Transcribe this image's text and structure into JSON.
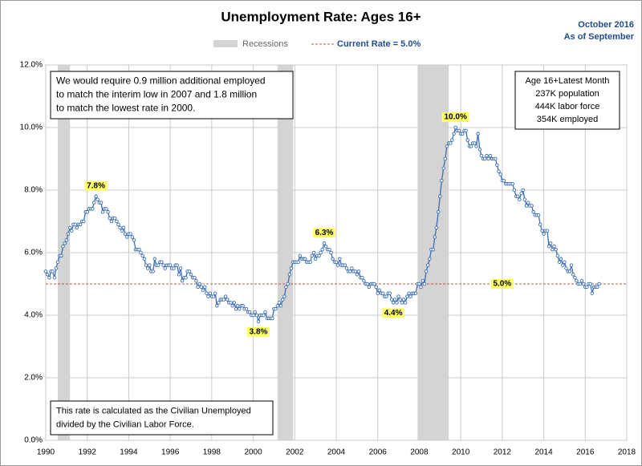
{
  "chart_data": {
    "type": "line",
    "title": "Unemployment Rate: Ages 16+",
    "date_lines": [
      "October 2016",
      "As of September"
    ],
    "recession_label": "Recessions",
    "recessions": [
      [
        1990.58,
        1991.17
      ],
      [
        2001.17,
        2001.92
      ],
      [
        2007.92,
        2009.42
      ]
    ],
    "recession_color": "#d4d4d4",
    "current_rate": 5.0,
    "current_rate_label": "Current Rate = 5.0%",
    "current_rate_color": "#c0504d",
    "xlim": [
      1990,
      2018
    ],
    "xticks": [
      1990,
      1992,
      1994,
      1996,
      1998,
      2000,
      2002,
      2004,
      2006,
      2008,
      2010,
      2012,
      2014,
      2016,
      2018
    ],
    "ylim": [
      0,
      12
    ],
    "yticks": [
      {
        "value": 0,
        "label": "0.0%"
      },
      {
        "value": 2,
        "label": "2.0%"
      },
      {
        "value": 4,
        "label": "4.0%"
      },
      {
        "value": 6,
        "label": "6.0%"
      },
      {
        "value": 8,
        "label": "8.0%"
      },
      {
        "value": 10,
        "label": "10.0%"
      },
      {
        "value": 12,
        "label": "12.0%"
      }
    ],
    "grid": true,
    "series": [
      {
        "color": "#3a6db3",
        "x": [
          1990,
          1990.08,
          1990.17,
          1990.25,
          1990.33,
          1990.42,
          1990.5,
          1990.58,
          1990.67,
          1990.75,
          1990.83,
          1990.92,
          1991,
          1991.08,
          1991.17,
          1991.25,
          1991.33,
          1991.42,
          1991.5,
          1991.58,
          1991.67,
          1991.75,
          1991.83,
          1991.92,
          1992,
          1992.08,
          1992.17,
          1992.25,
          1992.33,
          1992.42,
          1992.5,
          1992.58,
          1992.67,
          1992.75,
          1992.83,
          1992.92,
          1993,
          1993.08,
          1993.17,
          1993.25,
          1993.33,
          1993.42,
          1993.5,
          1993.58,
          1993.67,
          1993.75,
          1993.83,
          1993.92,
          1994,
          1994.08,
          1994.17,
          1994.25,
          1994.33,
          1994.42,
          1994.5,
          1994.58,
          1994.67,
          1994.75,
          1994.83,
          1994.92,
          1995,
          1995.08,
          1995.17,
          1995.25,
          1995.33,
          1995.42,
          1995.5,
          1995.58,
          1995.67,
          1995.75,
          1995.83,
          1995.92,
          1996,
          1996.08,
          1996.17,
          1996.25,
          1996.33,
          1996.42,
          1996.5,
          1996.58,
          1996.67,
          1996.75,
          1996.83,
          1996.92,
          1997,
          1997.08,
          1997.17,
          1997.25,
          1997.33,
          1997.42,
          1997.5,
          1997.58,
          1997.67,
          1997.75,
          1997.83,
          1997.92,
          1998,
          1998.08,
          1998.17,
          1998.25,
          1998.33,
          1998.42,
          1998.5,
          1998.58,
          1998.67,
          1998.75,
          1998.83,
          1998.92,
          1999,
          1999.08,
          1999.17,
          1999.25,
          1999.33,
          1999.42,
          1999.5,
          1999.58,
          1999.67,
          1999.75,
          1999.83,
          1999.92,
          2000,
          2000.08,
          2000.17,
          2000.25,
          2000.33,
          2000.42,
          2000.5,
          2000.58,
          2000.67,
          2000.75,
          2000.83,
          2000.92,
          2001,
          2001.08,
          2001.17,
          2001.25,
          2001.33,
          2001.42,
          2001.5,
          2001.58,
          2001.67,
          2001.75,
          2001.83,
          2001.92,
          2002,
          2002.08,
          2002.17,
          2002.25,
          2002.33,
          2002.42,
          2002.5,
          2002.58,
          2002.67,
          2002.75,
          2002.83,
          2002.92,
          2003,
          2003.08,
          2003.17,
          2003.25,
          2003.33,
          2003.42,
          2003.5,
          2003.58,
          2003.67,
          2003.75,
          2003.83,
          2003.92,
          2004,
          2004.08,
          2004.17,
          2004.25,
          2004.33,
          2004.42,
          2004.5,
          2004.58,
          2004.67,
          2004.75,
          2004.83,
          2004.92,
          2005,
          2005.08,
          2005.17,
          2005.25,
          2005.33,
          2005.42,
          2005.5,
          2005.58,
          2005.67,
          2005.75,
          2005.83,
          2005.92,
          2006,
          2006.08,
          2006.17,
          2006.25,
          2006.33,
          2006.42,
          2006.5,
          2006.58,
          2006.67,
          2006.75,
          2006.83,
          2006.92,
          2007,
          2007.08,
          2007.17,
          2007.25,
          2007.33,
          2007.42,
          2007.5,
          2007.58,
          2007.67,
          2007.75,
          2007.83,
          2007.92,
          2008,
          2008.08,
          2008.17,
          2008.25,
          2008.33,
          2008.42,
          2008.5,
          2008.58,
          2008.67,
          2008.75,
          2008.83,
          2008.92,
          2009,
          2009.08,
          2009.17,
          2009.25,
          2009.33,
          2009.42,
          2009.5,
          2009.58,
          2009.67,
          2009.75,
          2009.83,
          2009.92,
          2010,
          2010.08,
          2010.17,
          2010.25,
          2010.33,
          2010.42,
          2010.5,
          2010.58,
          2010.67,
          2010.75,
          2010.83,
          2010.92,
          2011,
          2011.08,
          2011.17,
          2011.25,
          2011.33,
          2011.42,
          2011.5,
          2011.58,
          2011.67,
          2011.75,
          2011.83,
          2011.92,
          2012,
          2012.08,
          2012.17,
          2012.25,
          2012.33,
          2012.42,
          2012.5,
          2012.58,
          2012.67,
          2012.75,
          2012.83,
          2012.92,
          2013,
          2013.08,
          2013.17,
          2013.25,
          2013.33,
          2013.42,
          2013.5,
          2013.58,
          2013.67,
          2013.75,
          2013.83,
          2013.92,
          2014,
          2014.08,
          2014.17,
          2014.25,
          2014.33,
          2014.42,
          2014.5,
          2014.58,
          2014.67,
          2014.75,
          2014.83,
          2014.92,
          2015,
          2015.08,
          2015.17,
          2015.25,
          2015.33,
          2015.42,
          2015.5,
          2015.58,
          2015.67,
          2015.75,
          2015.83,
          2015.92,
          2016,
          2016.08,
          2016.17,
          2016.25,
          2016.33,
          2016.42,
          2016.5,
          2016.58,
          2016.67
        ],
        "values": [
          5.4,
          5.3,
          5.2,
          5.4,
          5.4,
          5.2,
          5.5,
          5.7,
          5.9,
          5.9,
          6.2,
          6.3,
          6.4,
          6.6,
          6.8,
          6.7,
          6.9,
          6.9,
          6.8,
          6.9,
          6.9,
          7.0,
          7.0,
          7.3,
          7.3,
          7.4,
          7.4,
          7.4,
          7.6,
          7.8,
          7.7,
          7.6,
          7.6,
          7.3,
          7.4,
          7.4,
          7.3,
          7.1,
          7.0,
          7.1,
          7.1,
          7.0,
          6.9,
          6.8,
          6.7,
          6.8,
          6.6,
          6.5,
          6.6,
          6.6,
          6.5,
          6.4,
          6.1,
          6.1,
          6.1,
          6.0,
          5.9,
          5.8,
          5.6,
          5.5,
          5.6,
          5.4,
          5.4,
          5.8,
          5.6,
          5.6,
          5.7,
          5.7,
          5.6,
          5.5,
          5.6,
          5.6,
          5.6,
          5.5,
          5.5,
          5.6,
          5.6,
          5.3,
          5.5,
          5.1,
          5.2,
          5.2,
          5.4,
          5.4,
          5.3,
          5.2,
          5.2,
          5.1,
          4.9,
          5.0,
          4.9,
          4.8,
          4.9,
          4.7,
          4.6,
          4.7,
          4.6,
          4.6,
          4.7,
          4.3,
          4.4,
          4.5,
          4.5,
          4.5,
          4.6,
          4.5,
          4.4,
          4.4,
          4.3,
          4.4,
          4.2,
          4.3,
          4.2,
          4.3,
          4.3,
          4.2,
          4.2,
          4.1,
          4.1,
          4.0,
          4.0,
          4.1,
          4.0,
          3.8,
          4.0,
          4.0,
          4.0,
          4.1,
          3.9,
          3.9,
          3.9,
          3.9,
          4.2,
          4.2,
          4.3,
          4.4,
          4.3,
          4.5,
          4.6,
          4.9,
          5.0,
          5.3,
          5.5,
          5.7,
          5.7,
          5.7,
          5.7,
          5.9,
          5.8,
          5.8,
          5.8,
          5.7,
          5.7,
          5.7,
          5.9,
          6.0,
          5.8,
          5.9,
          5.9,
          6.0,
          6.1,
          6.3,
          6.2,
          6.1,
          6.1,
          6.0,
          5.8,
          5.7,
          5.7,
          5.6,
          5.8,
          5.6,
          5.6,
          5.6,
          5.5,
          5.4,
          5.4,
          5.5,
          5.4,
          5.4,
          5.3,
          5.4,
          5.2,
          5.2,
          5.1,
          5.0,
          5.0,
          4.9,
          5.0,
          5.0,
          5.0,
          4.9,
          4.7,
          4.8,
          4.7,
          4.7,
          4.6,
          4.6,
          4.7,
          4.7,
          4.5,
          4.4,
          4.5,
          4.4,
          4.6,
          4.5,
          4.4,
          4.5,
          4.4,
          4.6,
          4.7,
          4.6,
          4.7,
          4.7,
          4.7,
          5.0,
          5.0,
          4.9,
          5.1,
          5.0,
          5.4,
          5.6,
          5.8,
          6.1,
          6.1,
          6.5,
          6.8,
          7.3,
          7.8,
          8.3,
          8.7,
          9.0,
          9.4,
          9.5,
          9.5,
          9.6,
          9.8,
          10.0,
          9.9,
          9.9,
          9.8,
          9.8,
          9.9,
          9.9,
          9.6,
          9.4,
          9.4,
          9.5,
          9.5,
          9.4,
          9.8,
          9.3,
          9.1,
          9.0,
          9.0,
          9.1,
          9.0,
          9.1,
          9.0,
          9.0,
          9.0,
          8.8,
          8.6,
          8.5,
          8.3,
          8.3,
          8.2,
          8.2,
          8.2,
          8.2,
          8.2,
          8.0,
          7.8,
          7.8,
          7.7,
          7.9,
          8.0,
          7.7,
          7.5,
          7.6,
          7.5,
          7.5,
          7.3,
          7.2,
          7.2,
          7.2,
          6.9,
          6.7,
          6.6,
          6.7,
          6.7,
          6.2,
          6.3,
          6.1,
          6.2,
          6.1,
          5.9,
          5.7,
          5.8,
          5.6,
          5.7,
          5.5,
          5.4,
          5.4,
          5.6,
          5.3,
          5.2,
          5.1,
          5.0,
          5.0,
          5.1,
          5.0,
          4.9,
          4.9,
          5.0,
          5.0,
          4.7,
          4.9,
          4.9,
          4.9,
          5.0
        ]
      }
    ],
    "callouts": [
      {
        "x": 1992.42,
        "value": 7.8,
        "label": "7.8%",
        "position": "above"
      },
      {
        "x": 2000.25,
        "value": 3.8,
        "label": "3.8%",
        "position": "below"
      },
      {
        "x": 2003.42,
        "value": 6.3,
        "label": "6.3%",
        "position": "above"
      },
      {
        "x": 2006.75,
        "value": 4.4,
        "label": "4.4%",
        "position": "below"
      },
      {
        "x": 2009.75,
        "value": 10.0,
        "label": "10.0%",
        "position": "above"
      },
      {
        "x": 2012,
        "value": 5.0,
        "label": "5.0%",
        "position": "center"
      }
    ],
    "note_top": [
      "We would require 0.9 million additional employed",
      "to match the interim low in 2007 and 1.8 million",
      "to match the lowest rate in 2000."
    ],
    "note_right": [
      "Age 16+Latest Month",
      "237K population",
      "444K labor force",
      "354K employed"
    ],
    "note_bottom": [
      "This rate is calculated as the Civilian Unemployed",
      "divided by the Civilian Labor Force."
    ]
  }
}
